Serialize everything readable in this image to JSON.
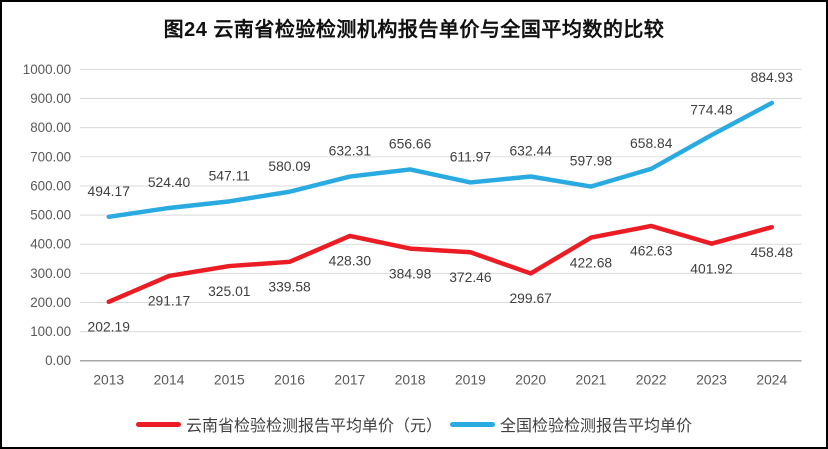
{
  "chart_data": {
    "type": "line",
    "title": "图24 云南省检验检测机构报告单价与全国平均数的比较",
    "categories": [
      "2013",
      "2014",
      "2015",
      "2016",
      "2017",
      "2018",
      "2019",
      "2020",
      "2021",
      "2022",
      "2023",
      "2024"
    ],
    "series": [
      {
        "name": "云南省检验检测报告平均单价（元）",
        "color": "#ec1c24",
        "label_side": "below",
        "values": [
          202.19,
          291.17,
          325.01,
          339.58,
          428.3,
          384.98,
          372.46,
          299.67,
          422.68,
          462.63,
          401.92,
          458.48
        ]
      },
      {
        "name": "全国检验检测报告平均单价",
        "color": "#29abe2",
        "label_side": "above",
        "values": [
          494.17,
          524.4,
          547.11,
          580.09,
          632.31,
          656.66,
          611.97,
          632.44,
          597.98,
          658.84,
          774.48,
          884.93
        ]
      }
    ],
    "ylim": [
      0,
      1000
    ],
    "ytick_step": 100,
    "value_decimals": 2,
    "grid": true,
    "legend_position": "bottom",
    "colors": {
      "gridline": "#d9d9d9",
      "axis_line": "#a6a6a6",
      "tick_text": "#595959",
      "data_label_text": "#404040"
    }
  }
}
